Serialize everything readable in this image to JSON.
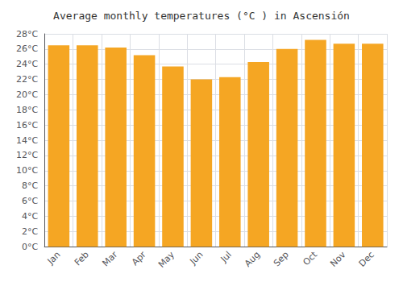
{
  "chart_data": {
    "type": "bar",
    "title": "Average monthly temperatures (°C ) in Ascensión",
    "categories": [
      "Jan",
      "Feb",
      "Mar",
      "Apr",
      "May",
      "Jun",
      "Jul",
      "Aug",
      "Sep",
      "Oct",
      "Nov",
      "Dec"
    ],
    "values": [
      26.5,
      26.5,
      26.2,
      25.2,
      23.7,
      22.0,
      22.3,
      24.3,
      26.0,
      27.2,
      26.7,
      26.7
    ],
    "color": "#F5A623",
    "ylim": [
      0,
      28
    ],
    "yticks": [
      {
        "value": 0,
        "label": "0°C"
      },
      {
        "value": 2,
        "label": "2°C"
      },
      {
        "value": 4,
        "label": "4°C"
      },
      {
        "value": 6,
        "label": "6°C"
      },
      {
        "value": 8,
        "label": "8°C"
      },
      {
        "value": 10,
        "label": "10°C"
      },
      {
        "value": 12,
        "label": "12°C"
      },
      {
        "value": 14,
        "label": "14°C"
      },
      {
        "value": 16,
        "label": "16°C"
      },
      {
        "value": 18,
        "label": "18°C"
      },
      {
        "value": 20,
        "label": "20°C"
      },
      {
        "value": 22,
        "label": "22°C"
      },
      {
        "value": 24,
        "label": "24°C"
      },
      {
        "value": 26,
        "label": "26°C"
      },
      {
        "value": 28,
        "label": "28°C"
      }
    ],
    "grid": true
  }
}
